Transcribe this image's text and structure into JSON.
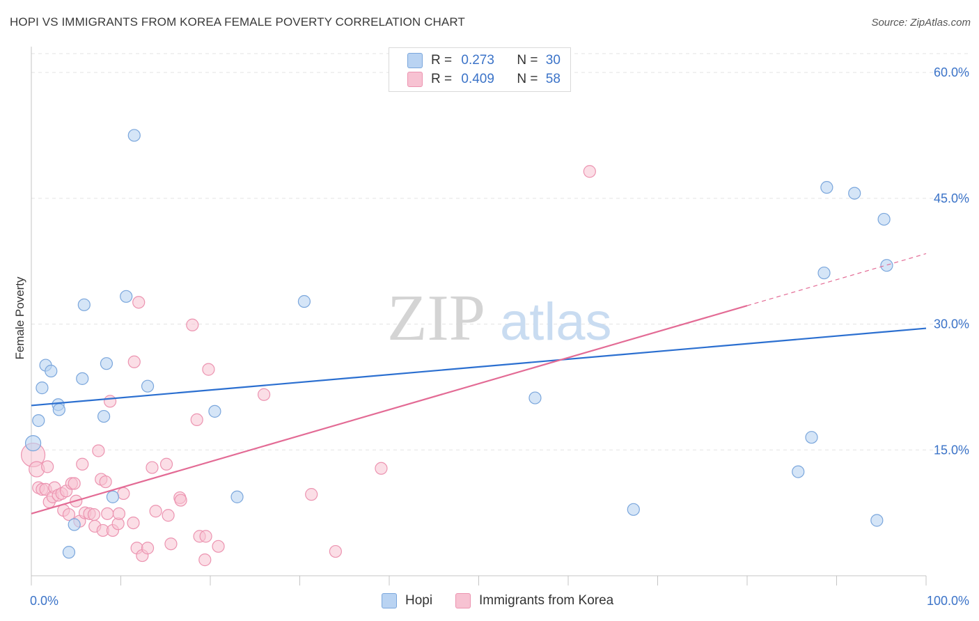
{
  "title": "HOPI VS IMMIGRANTS FROM KOREA FEMALE POVERTY CORRELATION CHART",
  "source": "Source: ZipAtlas.com",
  "watermark": {
    "zip": "ZIP",
    "atlas": "atlas"
  },
  "legend_stats": [
    {
      "r_label": "R =",
      "r_value": "0.273",
      "n_label": "N =",
      "n_value": "30"
    },
    {
      "r_label": "R =",
      "r_value": "0.409",
      "n_label": "N =",
      "n_value": "58"
    }
  ],
  "colors": {
    "hopi_fill": "#b9d3f2",
    "hopi_stroke": "#7aa6dc",
    "hopi_line": "#2b6fd0",
    "korea_fill": "#f7c2d2",
    "korea_stroke": "#ec93b0",
    "korea_line": "#e36b95",
    "axis_label": "#3b73c8",
    "grid": "#e3e3e3"
  },
  "chart_data": {
    "type": "scatter",
    "title": "HOPI VS IMMIGRANTS FROM KOREA FEMALE POVERTY CORRELATION CHART",
    "xlabel": "",
    "ylabel": "Female Poverty",
    "xlim": [
      0,
      100
    ],
    "ylim": [
      0,
      62
    ],
    "x_tick_labels": [
      "0.0%",
      "100.0%"
    ],
    "y_ticks": [
      15,
      30,
      45,
      60
    ],
    "y_tick_labels": [
      "15.0%",
      "30.0%",
      "45.0%",
      "60.0%"
    ],
    "series": [
      {
        "name": "Hopi",
        "r": 0.273,
        "n": 30,
        "trend": {
          "x0": 0,
          "y0": 20.3,
          "x1": 100,
          "y1": 29.5
        },
        "points": [
          [
            0.2,
            15.8
          ],
          [
            0.8,
            18.5
          ],
          [
            1.2,
            22.4
          ],
          [
            1.6,
            25.1
          ],
          [
            2.2,
            24.4
          ],
          [
            3.0,
            20.4
          ],
          [
            3.1,
            19.8
          ],
          [
            4.2,
            2.8
          ],
          [
            4.8,
            6.1
          ],
          [
            5.7,
            23.5
          ],
          [
            5.9,
            32.3
          ],
          [
            8.1,
            19.0
          ],
          [
            8.4,
            25.3
          ],
          [
            9.1,
            9.4
          ],
          [
            10.6,
            33.3
          ],
          [
            11.5,
            52.5
          ],
          [
            13.0,
            22.6
          ],
          [
            20.5,
            19.6
          ],
          [
            23.0,
            9.4
          ],
          [
            30.5,
            32.7
          ],
          [
            56.3,
            21.2
          ],
          [
            67.3,
            7.9
          ],
          [
            85.7,
            12.4
          ],
          [
            87.2,
            16.5
          ],
          [
            88.6,
            36.1
          ],
          [
            88.9,
            46.3
          ],
          [
            92.0,
            45.6
          ],
          [
            94.5,
            6.6
          ],
          [
            95.3,
            42.5
          ],
          [
            95.6,
            37.0
          ]
        ]
      },
      {
        "name": "Immigrants from Korea",
        "r": 0.409,
        "n": 58,
        "trend": {
          "x0": 0,
          "y0": 7.4,
          "x1": 80,
          "y1": 32.2,
          "dash_x1": 100,
          "dash_y1": 38.4
        },
        "points": [
          [
            0.2,
            14.4
          ],
          [
            0.6,
            12.7
          ],
          [
            0.8,
            10.5
          ],
          [
            1.2,
            10.3
          ],
          [
            1.6,
            10.3
          ],
          [
            1.8,
            13.0
          ],
          [
            2.0,
            8.8
          ],
          [
            2.4,
            9.4
          ],
          [
            2.6,
            10.5
          ],
          [
            3.0,
            9.6
          ],
          [
            3.4,
            9.8
          ],
          [
            3.6,
            7.8
          ],
          [
            3.9,
            10.1
          ],
          [
            4.2,
            7.3
          ],
          [
            4.5,
            11.0
          ],
          [
            4.8,
            11.0
          ],
          [
            5.0,
            8.9
          ],
          [
            5.4,
            6.5
          ],
          [
            5.7,
            13.3
          ],
          [
            6.0,
            7.5
          ],
          [
            6.5,
            7.4
          ],
          [
            7.0,
            7.3
          ],
          [
            7.1,
            5.9
          ],
          [
            7.5,
            14.9
          ],
          [
            7.8,
            11.5
          ],
          [
            8.0,
            5.4
          ],
          [
            8.3,
            11.2
          ],
          [
            8.5,
            7.4
          ],
          [
            8.8,
            20.8
          ],
          [
            9.1,
            5.4
          ],
          [
            9.7,
            6.2
          ],
          [
            9.8,
            7.4
          ],
          [
            10.3,
            9.8
          ],
          [
            11.4,
            6.3
          ],
          [
            11.5,
            25.5
          ],
          [
            11.8,
            3.3
          ],
          [
            12.0,
            32.6
          ],
          [
            12.4,
            2.4
          ],
          [
            13.0,
            3.3
          ],
          [
            13.5,
            12.9
          ],
          [
            13.9,
            7.7
          ],
          [
            15.1,
            13.3
          ],
          [
            15.3,
            7.2
          ],
          [
            15.6,
            3.8
          ],
          [
            16.6,
            9.3
          ],
          [
            16.7,
            9.0
          ],
          [
            18.0,
            29.9
          ],
          [
            18.5,
            18.6
          ],
          [
            18.8,
            4.7
          ],
          [
            19.4,
            1.9
          ],
          [
            19.5,
            4.7
          ],
          [
            19.8,
            24.6
          ],
          [
            20.9,
            3.5
          ],
          [
            26.0,
            21.6
          ],
          [
            31.3,
            9.7
          ],
          [
            34.0,
            2.9
          ],
          [
            39.1,
            12.8
          ],
          [
            62.4,
            48.2
          ]
        ]
      }
    ]
  }
}
